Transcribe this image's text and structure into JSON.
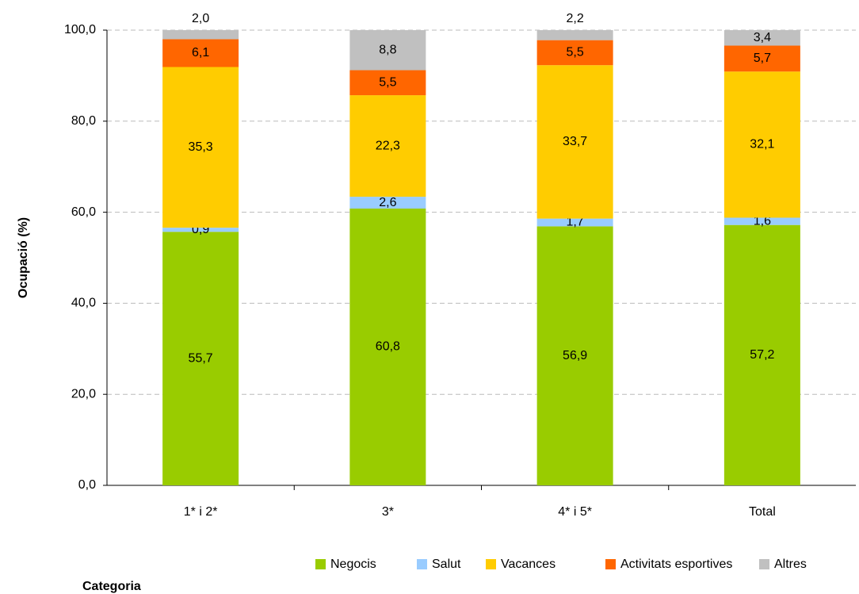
{
  "chart_data": {
    "type": "stacked_bar",
    "x_label": "Categoria",
    "y_label": "Ocupació (%)",
    "categories": [
      "1* i  2*",
      "3*",
      "4* i 5*",
      "Total"
    ],
    "series": [
      {
        "name": "Negocis",
        "color": "#99cc00",
        "values": [
          55.7,
          60.8,
          56.9,
          57.2
        ],
        "value_labels": [
          "55,7",
          "60,8",
          "56,9",
          "57,2"
        ]
      },
      {
        "name": "Salut",
        "color": "#99ccff",
        "values": [
          0.9,
          2.6,
          1.7,
          1.6
        ],
        "value_labels": [
          "0,9",
          "2,6",
          "1,7",
          "1,6"
        ]
      },
      {
        "name": "Vacances",
        "color": "#ffcc00",
        "values": [
          35.3,
          22.3,
          33.7,
          32.1
        ],
        "value_labels": [
          "35,3",
          "22,3",
          "33,7",
          "32,1"
        ]
      },
      {
        "name": "Activitats esportives",
        "color": "#ff6600",
        "values": [
          6.1,
          5.5,
          5.5,
          5.7
        ],
        "value_labels": [
          "6,1",
          "5,5",
          "5,5",
          "5,7"
        ]
      },
      {
        "name": "Altres",
        "color": "#c0c0c0",
        "values": [
          2.0,
          8.8,
          2.2,
          3.4
        ],
        "value_labels": [
          "2,0",
          "8,8",
          "2,2",
          "3,4"
        ]
      }
    ],
    "ylim": [
      0,
      100
    ],
    "yticks": [
      {
        "value": 0,
        "label": "0,0"
      },
      {
        "value": 20,
        "label": "20,0"
      },
      {
        "value": 40,
        "label": "40,0"
      },
      {
        "value": 60,
        "label": "60,0"
      },
      {
        "value": 80,
        "label": "80,0"
      },
      {
        "value": 100,
        "label": "100,0"
      }
    ],
    "grid": true,
    "legend": "bottom"
  }
}
